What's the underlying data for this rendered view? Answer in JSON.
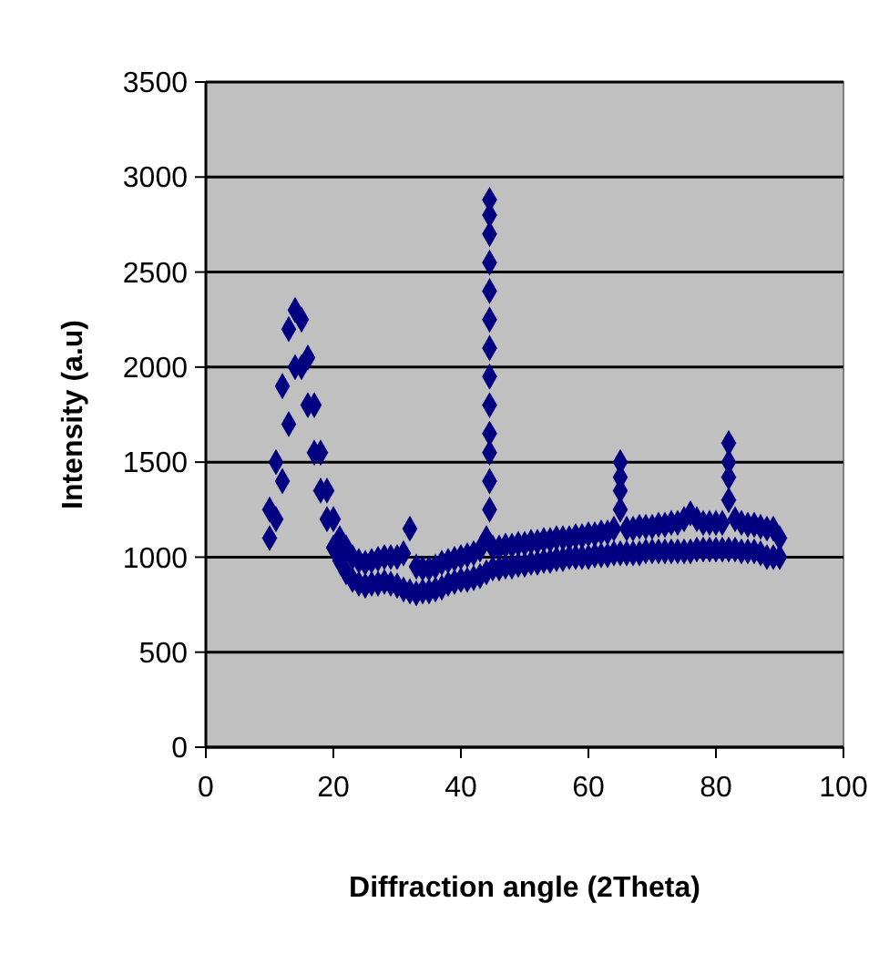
{
  "chart_data": {
    "type": "scatter",
    "xlabel": "Diffraction angle (2Theta)",
    "ylabel": "Intensity (a.u)",
    "xlim": [
      0,
      100
    ],
    "xticks": [
      0,
      20,
      40,
      60,
      80,
      100
    ],
    "ylim": [
      0,
      3500
    ],
    "yticks": [
      0,
      500,
      1000,
      1500,
      2000,
      2500,
      3000,
      3500
    ],
    "grid": "y",
    "marker": "diamond",
    "series": [
      {
        "color": "#000080",
        "x": [
          10,
          11,
          12,
          13,
          14,
          15,
          16,
          17,
          18,
          19,
          20,
          21,
          22,
          23,
          24,
          25,
          26,
          27,
          28,
          29,
          30,
          31,
          32,
          33,
          34,
          35,
          36,
          37,
          38,
          39,
          40,
          41,
          42,
          43,
          44,
          45,
          46,
          47,
          48,
          49,
          50,
          51,
          52,
          53,
          54,
          55,
          56,
          57,
          58,
          59,
          60,
          61,
          62,
          63,
          64,
          65,
          66,
          67,
          68,
          69,
          70,
          71,
          72,
          73,
          74,
          75,
          76,
          77,
          78,
          79,
          80,
          81,
          82,
          83,
          84,
          85,
          86,
          87,
          88,
          89,
          90,
          10,
          11,
          12,
          13,
          14,
          15,
          16,
          17,
          18,
          19,
          20,
          21,
          22,
          23,
          24,
          25,
          26,
          27,
          28,
          29,
          30,
          31,
          32,
          33,
          34,
          35,
          36,
          37,
          38,
          39,
          40,
          41,
          42,
          43,
          44,
          45,
          46,
          47,
          48,
          49,
          50,
          51,
          52,
          53,
          54,
          55,
          56,
          57,
          58,
          59,
          60,
          61,
          62,
          63,
          64,
          65,
          66,
          67,
          68,
          69,
          70,
          71,
          72,
          73,
          74,
          75,
          76,
          77,
          78,
          79,
          80,
          81,
          82,
          83,
          84,
          85,
          86,
          87,
          88,
          89,
          90,
          44.5,
          44.5,
          44.5,
          44.5,
          44.5,
          44.5,
          44.5,
          44.5,
          44.5,
          44.5,
          44.5,
          44.5,
          44.5,
          65,
          65,
          65,
          82,
          82,
          82
        ],
        "values": [
          1250,
          1500,
          1900,
          2200,
          2300,
          2250,
          2050,
          1800,
          1550,
          1350,
          1200,
          1100,
          1050,
          1000,
          980,
          970,
          980,
          990,
          1000,
          1000,
          1000,
          1020,
          1150,
          950,
          940,
          940,
          950,
          970,
          980,
          990,
          1000,
          1010,
          1020,
          1040,
          1100,
          1050,
          1050,
          1060,
          1060,
          1070,
          1070,
          1080,
          1080,
          1090,
          1090,
          1100,
          1100,
          1100,
          1110,
          1110,
          1120,
          1120,
          1130,
          1130,
          1150,
          1500,
          1150,
          1150,
          1160,
          1160,
          1160,
          1170,
          1170,
          1180,
          1180,
          1200,
          1230,
          1200,
          1180,
          1180,
          1180,
          1180,
          1600,
          1200,
          1180,
          1170,
          1170,
          1160,
          1150,
          1150,
          1100,
          1100,
          1200,
          1400,
          1700,
          2000,
          2000,
          1800,
          1550,
          1350,
          1200,
          1050,
          980,
          920,
          880,
          860,
          850,
          860,
          860,
          870,
          860,
          850,
          830,
          820,
          810,
          820,
          820,
          830,
          840,
          860,
          870,
          880,
          880,
          890,
          900,
          920,
          940,
          940,
          950,
          950,
          960,
          960,
          970,
          970,
          980,
          980,
          990,
          990,
          1000,
          1000,
          1000,
          1000,
          1010,
          1010,
          1010,
          1020,
          1020,
          1020,
          1020,
          1020,
          1030,
          1030,
          1030,
          1030,
          1030,
          1030,
          1030,
          1030,
          1040,
          1040,
          1040,
          1040,
          1040,
          1040,
          1040,
          1030,
          1030,
          1030,
          1020,
          1000,
          1000,
          1000,
          1250,
          1400,
          1550,
          1650,
          1800,
          1950,
          2100,
          2250,
          2400,
          2550,
          2700,
          2800,
          2880,
          1250,
          1350,
          1420,
          1300,
          1420,
          1500
        ]
      }
    ]
  }
}
